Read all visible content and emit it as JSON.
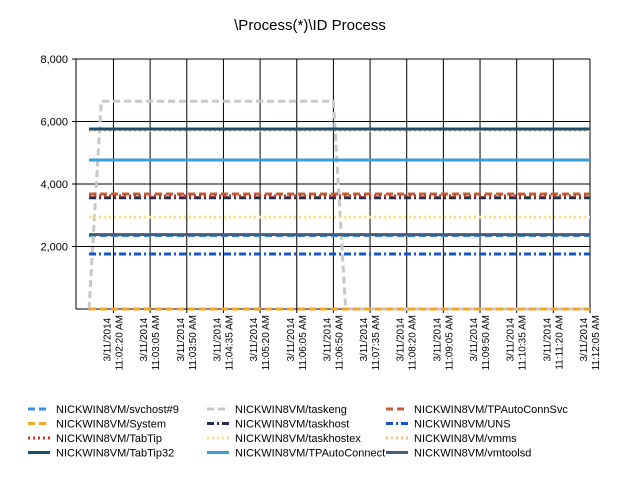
{
  "chart_data": {
    "type": "line",
    "title": "\\Process(*)\\ID Process",
    "x": [
      "3/11/2014 11:01:50 AM",
      "3/11/2014 11:02:05 AM",
      "3/11/2014 11:06:50 AM",
      "3/11/2014 11:07:05 AM",
      "3/11/2014 11:12:05 AM"
    ],
    "xlim": [
      "3/11/2014 11:01:34 AM",
      "3/11/2014 11:12:05 AM"
    ],
    "xticks": [
      "3/11/2014 11:02:20 AM",
      "3/11/2014 11:03:05 AM",
      "3/11/2014 11:03:50 AM",
      "3/11/2014 11:04:35 AM",
      "3/11/2014 11:05:20 AM",
      "3/11/2014 11:06:05 AM",
      "3/11/2014 11:06:50 AM",
      "3/11/2014 11:07:35 AM",
      "3/11/2014 11:08:20 AM",
      "3/11/2014 11:09:05 AM",
      "3/11/2014 11:09:50 AM",
      "3/11/2014 11:10:35 AM",
      "3/11/2014 11:11:20 AM",
      "3/11/2014 11:12:05 AM"
    ],
    "ylim": [
      0,
      8000
    ],
    "yticks": [
      {
        "value": 2000,
        "label": "2,000"
      },
      {
        "value": 4000,
        "label": "4,000"
      },
      {
        "value": 6000,
        "label": "6,000"
      },
      {
        "value": 8000,
        "label": "8,000"
      }
    ],
    "grid": true,
    "series": [
      {
        "name": "NICKWIN8VM/svchost#9",
        "color": "#3b8fe0",
        "style": "dashed",
        "values": [
          2350,
          2350,
          2350,
          2350,
          2350
        ]
      },
      {
        "name": "NICKWIN8VM/taskeng",
        "color": "#c8c8c8",
        "style": "dashed",
        "values": [
          0,
          6650,
          6650,
          0,
          0
        ]
      },
      {
        "name": "NICKWIN8VM/TPAutoConnSvc",
        "color": "#c0603a",
        "style": "dashed",
        "values": [
          3680,
          3680,
          3680,
          3680,
          3680
        ]
      },
      {
        "name": "NICKWIN8VM/System",
        "color": "#f5a623",
        "style": "dashed",
        "values": [
          0,
          0,
          0,
          0,
          0
        ]
      },
      {
        "name": "NICKWIN8VM/taskhost",
        "color": "#1f2d50",
        "style": "dashdot",
        "values": [
          3560,
          3560,
          3560,
          3560,
          3560
        ]
      },
      {
        "name": "NICKWIN8VM/UNS",
        "color": "#1456c8",
        "style": "dashdot",
        "values": [
          1760,
          1760,
          1760,
          1760,
          1760
        ]
      },
      {
        "name": "NICKWIN8VM/TabTip",
        "color": "#c0392b",
        "style": "dotted",
        "values": [
          3620,
          3620,
          3620,
          3620,
          3620
        ]
      },
      {
        "name": "NICKWIN8VM/taskhostex",
        "color": "#f7e08a",
        "style": "dotted",
        "values": [
          2940,
          2940,
          2940,
          2940,
          2940
        ]
      },
      {
        "name": "NICKWIN8VM/vmms",
        "color": "#f5c27a",
        "style": "dotted",
        "values": [
          5720,
          5720,
          5720,
          5720,
          5720
        ]
      },
      {
        "name": "NICKWIN8VM/TabTip32",
        "color": "#1e4e6e",
        "style": "solid",
        "values": [
          5760,
          5760,
          5760,
          5760,
          5760
        ]
      },
      {
        "name": "NICKWIN8VM/TPAutoConnect",
        "color": "#35a0d8",
        "style": "solid",
        "values": [
          4770,
          4770,
          4770,
          4770,
          4770
        ]
      },
      {
        "name": "NICKWIN8VM/vmtoolsd",
        "color": "#4a5a7a",
        "style": "solid",
        "values": [
          2380,
          2380,
          2380,
          2380,
          2380
        ]
      }
    ]
  }
}
